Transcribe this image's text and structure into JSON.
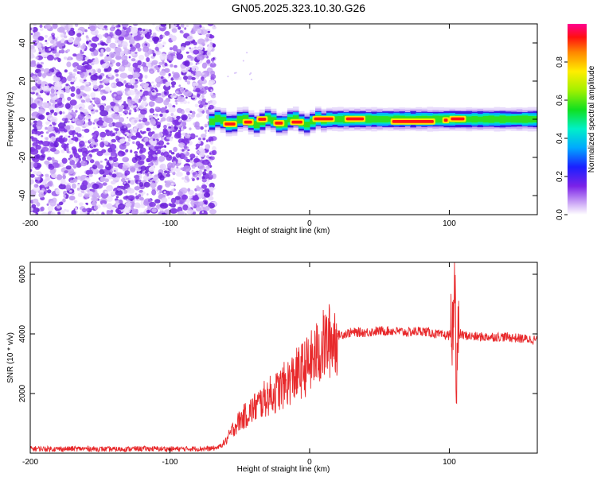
{
  "title": "GN05.2025.323.10.30.G26",
  "chart_data": [
    {
      "type": "heatmap",
      "title": "GN05.2025.323.10.30.G26",
      "xlabel": "Height of straight line (km)",
      "ylabel": "Frequency (Hz)",
      "xlim": [
        -200,
        163
      ],
      "ylim": [
        -50,
        50
      ],
      "x_ticks": [
        -200,
        -100,
        0,
        100
      ],
      "y_ticks": [
        -40,
        -20,
        0,
        20,
        40
      ],
      "colorbar": {
        "label": "Normalized spectral amplitude",
        "range": [
          0,
          1
        ],
        "ticks": [
          0.0,
          0.2,
          0.4,
          0.6,
          0.8
        ]
      },
      "segments": {
        "noise_region_x": [
          -200,
          -68
        ],
        "signal_region_x": [
          -72,
          163
        ],
        "signal_center_hz": 0,
        "signal_halfwidth_hz": 4
      }
    },
    {
      "type": "line",
      "title": "",
      "xlabel": "Height of straight line (km)",
      "ylabel": "SNR (10 * v/v)",
      "xlim": [
        -200,
        163
      ],
      "ylim": [
        0,
        6400
      ],
      "x_ticks": [
        -200,
        -100,
        0,
        100
      ],
      "y_ticks": [
        2000,
        4000,
        6000
      ],
      "color": "#e8292b",
      "series": [
        {
          "name": "SNR",
          "x": [
            -200,
            -180,
            -160,
            -140,
            -120,
            -100,
            -80,
            -70,
            -65,
            -60,
            -55,
            -50,
            -45,
            -40,
            -35,
            -30,
            -25,
            -20,
            -15,
            -10,
            -5,
            0,
            5,
            10,
            15,
            20,
            25,
            30,
            40,
            50,
            60,
            70,
            80,
            90,
            95,
            100,
            103,
            104,
            105,
            106,
            108,
            110,
            120,
            130,
            140,
            150,
            163
          ],
          "values": [
            150,
            140,
            150,
            130,
            150,
            140,
            150,
            150,
            200,
            400,
            800,
            1100,
            1300,
            1500,
            1700,
            1900,
            2000,
            2200,
            2400,
            2600,
            2800,
            3000,
            3300,
            3600,
            3800,
            3950,
            4000,
            4050,
            4050,
            4100,
            4100,
            4050,
            4100,
            4000,
            3950,
            3950,
            4300,
            6200,
            2500,
            3900,
            4000,
            3950,
            3900,
            3900,
            3900,
            3850,
            3800
          ]
        }
      ]
    }
  ]
}
